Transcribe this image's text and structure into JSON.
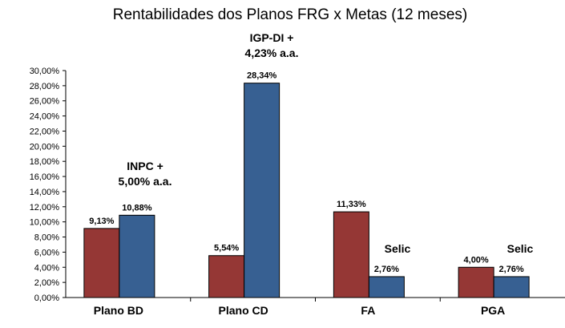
{
  "chart_data": {
    "type": "bar",
    "title": "Rentabilidades  dos Planos FRG x Metas (12 meses)",
    "categories": [
      "Plano BD",
      "Plano CD",
      "FA",
      "PGA"
    ],
    "series": [
      {
        "values": [
          9.13,
          5.54,
          11.33,
          4.0
        ],
        "labels": [
          "9,13%",
          "5,54%",
          "11,33%",
          "4,00%"
        ]
      },
      {
        "values": [
          10.88,
          28.34,
          2.76,
          2.76
        ],
        "labels": [
          "10,88%",
          "28,34%",
          "2,76%",
          "2,76%"
        ]
      }
    ],
    "colors": [
      "#953735",
      "#376092"
    ],
    "ylim": [
      0,
      30
    ],
    "ytick_step": 2,
    "yticks": [
      "0,00%",
      "2,00%",
      "4,00%",
      "6,00%",
      "8,00%",
      "10,00%",
      "12,00%",
      "14,00%",
      "16,00%",
      "18,00%",
      "20,00%",
      "22,00%",
      "24,00%",
      "26,00%",
      "28,00%",
      "30,00%"
    ],
    "grid": false,
    "annotations": [
      {
        "lines": [
          "INPC +",
          "5,00% a.a."
        ],
        "category": "Plano BD"
      },
      {
        "lines": [
          "IGP-DI +",
          "4,23% a.a."
        ],
        "category": "Plano CD"
      },
      {
        "lines": [
          "Selic"
        ],
        "category": "FA"
      },
      {
        "lines": [
          "Selic"
        ],
        "category": "PGA"
      }
    ]
  }
}
